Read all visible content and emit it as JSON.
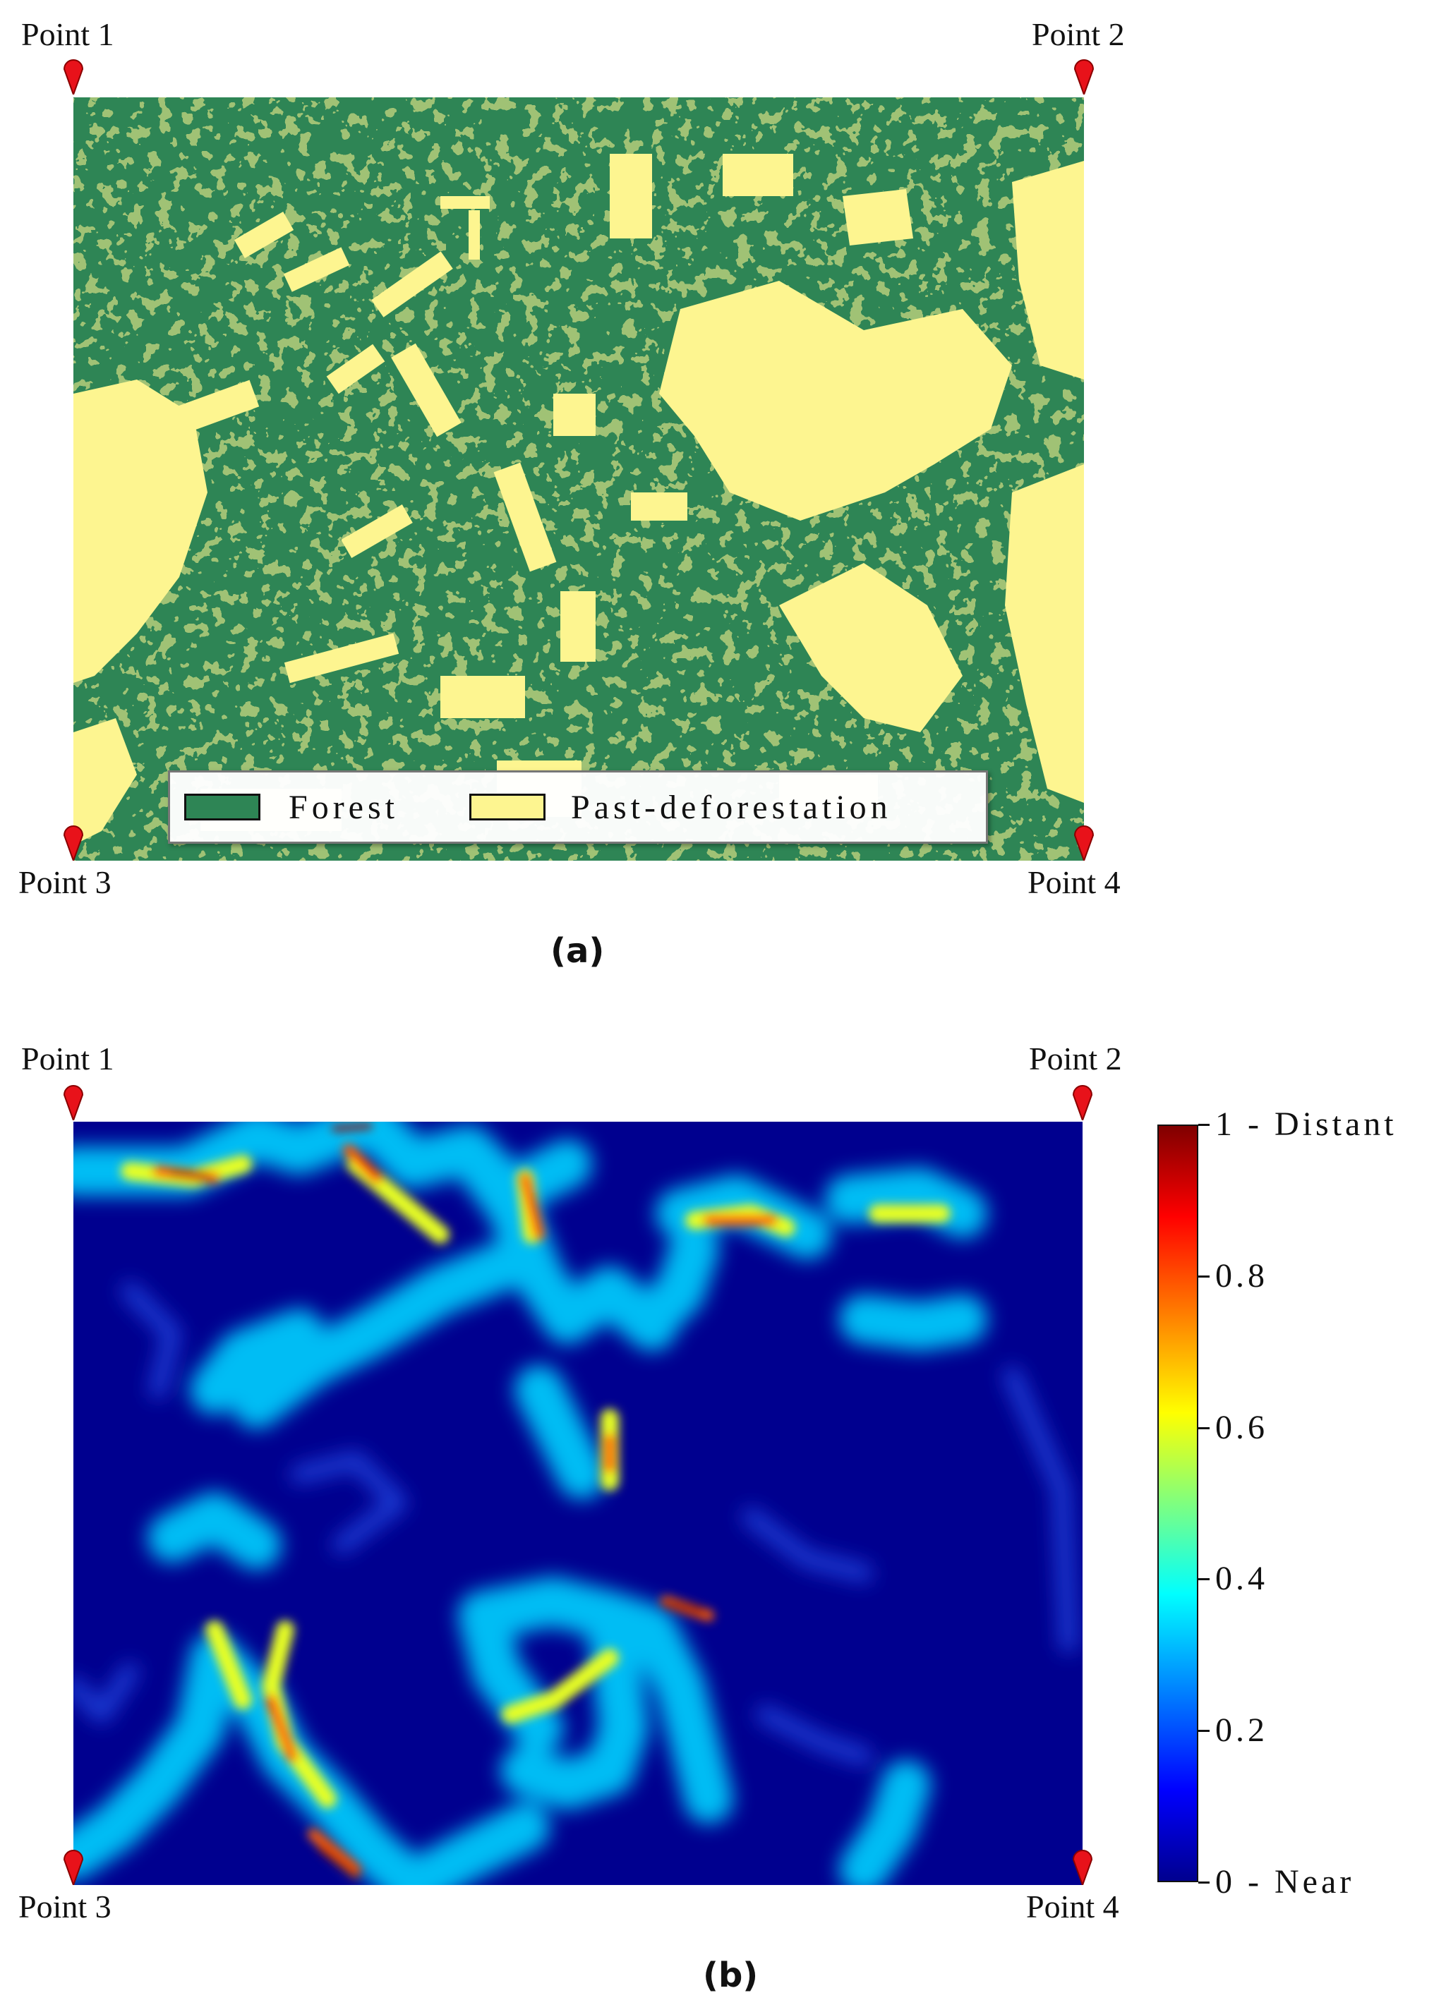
{
  "panel_a": {
    "caption": "(a)",
    "points": [
      "Point 1",
      "Point 2",
      "Point 3",
      "Point 4"
    ],
    "legend": [
      {
        "label": "Forest",
        "color": "#2e8555"
      },
      {
        "label": "Past-deforestation",
        "color": "#fdf590"
      }
    ]
  },
  "panel_b": {
    "caption": "(b)",
    "points": [
      "Point 1",
      "Point 2",
      "Point 3",
      "Point 4"
    ],
    "colorbar": {
      "colormap": "jet",
      "ticks": [
        "1 - Distant",
        "0.8",
        "0.6",
        "0.4",
        "0.2",
        "0 - Near"
      ],
      "tick_values": [
        1,
        0.8,
        0.6,
        0.4,
        0.2,
        0
      ]
    }
  },
  "colors": {
    "forest": "#2e8555",
    "deforestation": "#fdf590",
    "pin": "#e8121a",
    "near": "#00008f"
  }
}
